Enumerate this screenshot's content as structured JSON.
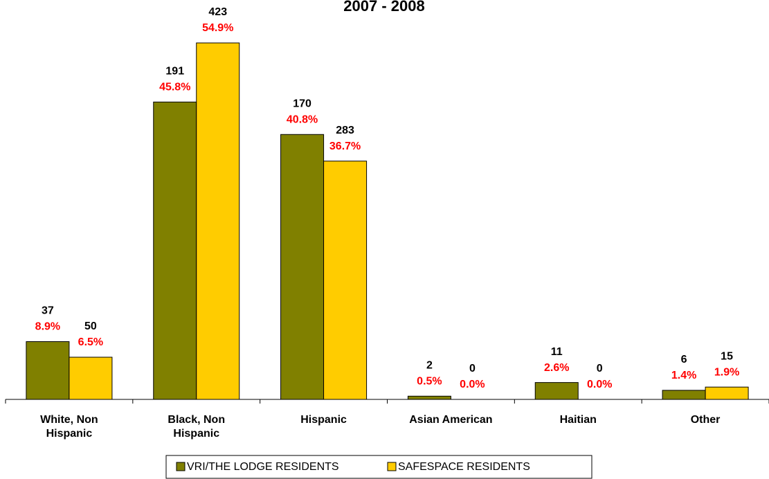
{
  "chart_data": {
    "type": "bar",
    "title": "2007 - 2008",
    "categories": [
      "White, Non Hispanic",
      "Black, Non Hispanic",
      "Hispanic",
      "Asian American",
      "Haitian",
      "Other"
    ],
    "series": [
      {
        "name": "VRI/THE LODGE RESIDENTS",
        "color": "#808000",
        "values": [
          8.9,
          45.8,
          40.8,
          0.5,
          2.6,
          1.4
        ],
        "value_labels": [
          "8.9%",
          "45.8%",
          "40.8%",
          "0.5%",
          "2.6%",
          "1.4%"
        ],
        "counts": [
          37,
          191,
          170,
          2,
          11,
          6
        ]
      },
      {
        "name": "SAFESPACE RESIDENTS",
        "color": "#ffcc00",
        "values": [
          6.5,
          54.9,
          36.7,
          0.0,
          0.0,
          1.9
        ],
        "value_labels": [
          "6.5%",
          "54.9%",
          "36.7%",
          "0.0%",
          "0.0%",
          "1.9%"
        ],
        "counts": [
          50,
          423,
          283,
          0,
          0,
          15
        ]
      }
    ],
    "legend": "bottom"
  }
}
